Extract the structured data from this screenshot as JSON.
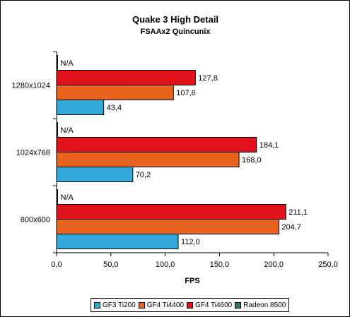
{
  "chart_data": {
    "type": "bar",
    "orientation": "horizontal",
    "title": "Quake 3 High Detail",
    "subtitle": "FSAAx2 Quincunix",
    "xlabel": "FPS",
    "ylabel": "",
    "xlim": [
      0,
      250
    ],
    "xticks": [
      "0,0",
      "50,0",
      "100,0",
      "150,0",
      "200,0",
      "250,0"
    ],
    "categories": [
      "1280x1024",
      "1024x768",
      "800x600"
    ],
    "series": [
      {
        "name": "GF3 Ti200",
        "color": "#33a8d8",
        "values": [
          43.4,
          70.2,
          112.0
        ],
        "labels": [
          "43,4",
          "70,2",
          "112,0"
        ]
      },
      {
        "name": "GF4 Ti4400",
        "color": "#e8641e",
        "values": [
          107.6,
          168.0,
          204.7
        ],
        "labels": [
          "107,6",
          "168,0",
          "204,7"
        ]
      },
      {
        "name": "GF4 Ti4600",
        "color": "#e0121c",
        "values": [
          127.8,
          184.1,
          211.1
        ],
        "labels": [
          "127,8",
          "184,1",
          "211,1"
        ]
      },
      {
        "name": "Radeon 8500",
        "color": "#2e7a52",
        "values": [
          null,
          null,
          null
        ],
        "labels": [
          "N/A",
          "N/A",
          "N/A"
        ]
      }
    ],
    "grid": false,
    "legend_position": "bottom"
  }
}
